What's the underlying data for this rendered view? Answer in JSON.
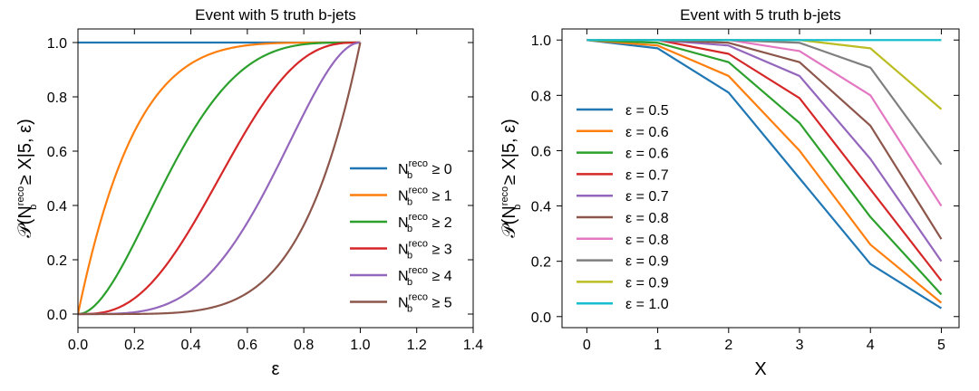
{
  "chart_data": [
    {
      "type": "line",
      "title": "Event with 5 truth b-jets",
      "xlabel": "ε",
      "ylabel": {
        "prefix": "𝒫(N",
        "base": "b",
        "sup": "reco",
        "suffix": " ≥ X|5, ε)"
      },
      "xlim": [
        0.0,
        1.4
      ],
      "ylim": [
        -0.05,
        1.05
      ],
      "xticks": [
        "0.0",
        "0.2",
        "0.4",
        "0.6",
        "0.8",
        "1.0",
        "1.2",
        "1.4"
      ],
      "yticks": [
        "0.0",
        "0.2",
        "0.4",
        "0.6",
        "0.8",
        "1.0"
      ],
      "grid": false,
      "legend_position": "lower-right",
      "series": [
        {
          "name": {
            "base": "N",
            "sub": "b",
            "sup": "reco",
            "rel": "≥ 0"
          },
          "k": 0,
          "color": "#1f77b4"
        },
        {
          "name": {
            "base": "N",
            "sub": "b",
            "sup": "reco",
            "rel": "≥ 1"
          },
          "k": 1,
          "color": "#ff7f0e"
        },
        {
          "name": {
            "base": "N",
            "sub": "b",
            "sup": "reco",
            "rel": "≥ 2"
          },
          "k": 2,
          "color": "#2ca02c"
        },
        {
          "name": {
            "base": "N",
            "sub": "b",
            "sup": "reco",
            "rel": "≥ 3"
          },
          "k": 3,
          "color": "#d62728"
        },
        {
          "name": {
            "base": "N",
            "sub": "b",
            "sup": "reco",
            "rel": "≥ 4"
          },
          "k": 4,
          "color": "#9467bd"
        },
        {
          "name": {
            "base": "N",
            "sub": "b",
            "sup": "reco",
            "rel": "≥ 5"
          },
          "k": 5,
          "color": "#8c564b"
        }
      ],
      "n_truth": 5,
      "x_domain": [
        0.0,
        1.0
      ]
    },
    {
      "type": "line",
      "title": "Event with 5 truth b-jets",
      "xlabel": "X",
      "ylabel": {
        "prefix": "𝒫(N",
        "base": "b",
        "sup": "reco",
        "suffix": " ≥ X|5, ε)"
      },
      "xlim": [
        -0.35,
        5.25
      ],
      "ylim": [
        -0.04,
        1.04
      ],
      "xticks": [
        "0",
        "1",
        "2",
        "3",
        "4",
        "5"
      ],
      "yticks": [
        "0.0",
        "0.2",
        "0.4",
        "0.6",
        "0.8",
        "1.0"
      ],
      "grid": false,
      "legend_position": "center-left",
      "x": [
        0,
        1,
        2,
        3,
        4,
        5
      ],
      "series": [
        {
          "name": "ε = 0.5",
          "color": "#1f77b4",
          "values": [
            1.0,
            0.97,
            0.81,
            0.5,
            0.19,
            0.03
          ]
        },
        {
          "name": "ε = 0.6",
          "color": "#ff7f0e",
          "values": [
            1.0,
            0.98,
            0.87,
            0.6,
            0.26,
            0.05
          ]
        },
        {
          "name": "ε = 0.6",
          "color": "#2ca02c",
          "values": [
            1.0,
            0.99,
            0.92,
            0.7,
            0.36,
            0.08
          ]
        },
        {
          "name": "ε = 0.7",
          "color": "#d62728",
          "values": [
            1.0,
            1.0,
            0.95,
            0.79,
            0.46,
            0.13
          ]
        },
        {
          "name": "ε = 0.7",
          "color": "#9467bd",
          "values": [
            1.0,
            1.0,
            0.98,
            0.87,
            0.57,
            0.2
          ]
        },
        {
          "name": "ε = 0.8",
          "color": "#8c564b",
          "values": [
            1.0,
            1.0,
            0.99,
            0.92,
            0.69,
            0.28
          ]
        },
        {
          "name": "ε = 0.8",
          "color": "#e377c2",
          "values": [
            1.0,
            1.0,
            1.0,
            0.96,
            0.8,
            0.4
          ]
        },
        {
          "name": "ε = 0.9",
          "color": "#7f7f7f",
          "values": [
            1.0,
            1.0,
            1.0,
            0.99,
            0.9,
            0.55
          ]
        },
        {
          "name": "ε = 0.9",
          "color": "#bcbd22",
          "values": [
            1.0,
            1.0,
            1.0,
            1.0,
            0.97,
            0.75
          ]
        },
        {
          "name": "ε = 1.0",
          "color": "#17becf",
          "values": [
            1.0,
            1.0,
            1.0,
            1.0,
            1.0,
            1.0
          ]
        }
      ]
    }
  ]
}
